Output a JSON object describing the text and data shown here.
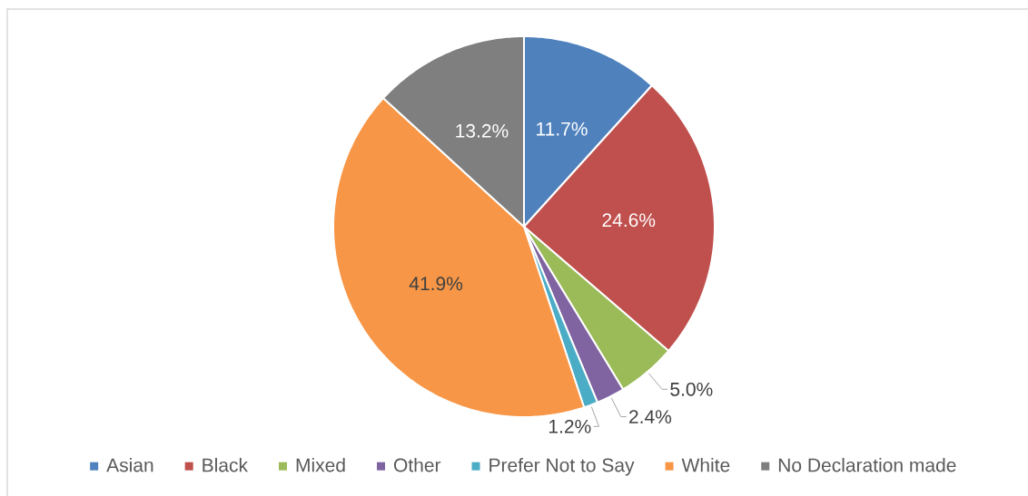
{
  "chart_data": {
    "type": "pie",
    "categories": [
      "Asian",
      "Black",
      "Mixed",
      "Other",
      "Prefer Not to Say",
      "White",
      "No Declaration made"
    ],
    "values": [
      11.7,
      24.6,
      5.0,
      2.4,
      1.2,
      41.9,
      13.2
    ],
    "colors": [
      "#4f81bd",
      "#c0504d",
      "#9bbb59",
      "#8064a2",
      "#4bacc6",
      "#f79646",
      "#7f7f7f"
    ],
    "value_labels": [
      "11.7%",
      "24.6%",
      "5.0%",
      "2.4%",
      "1.2%",
      "41.9%",
      "13.2%"
    ],
    "legend": "bottom"
  }
}
